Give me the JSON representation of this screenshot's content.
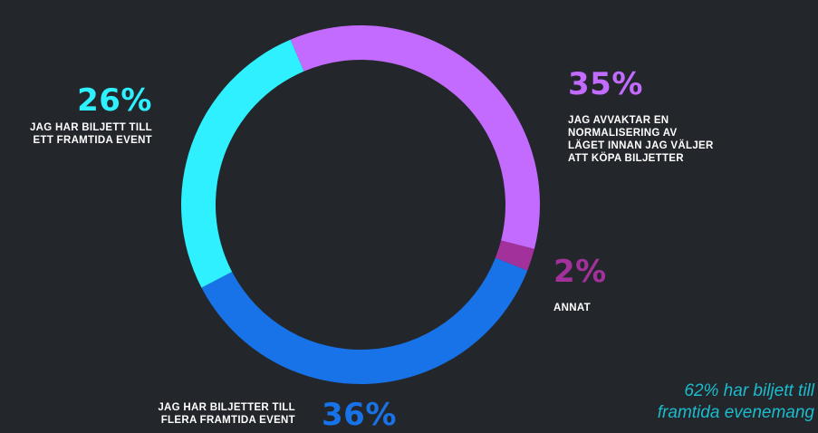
{
  "chart_data": {
    "type": "pie",
    "variant": "donut",
    "slices": [
      {
        "value": 35,
        "label": "35%",
        "description": "JAG AVVAKTAR EN\nNORMALISERING AV\nLÄGET INNAN JAG VÄLJER\nATT KÖPA BILJETTER",
        "color": "#c36bff"
      },
      {
        "value": 2,
        "label": "2%",
        "description": "ANNAT",
        "color": "#a3319c"
      },
      {
        "value": 36,
        "label": "36%",
        "description": "JAG HAR BILJETTER TILL\nFLERA FRAMTIDA EVENT",
        "color": "#1873e8"
      },
      {
        "value": 26,
        "label": "26%",
        "description": "JAG HAR BILJETT TILL\nETT FRAMTIDA EVENT",
        "color": "#2ef0ff"
      }
    ]
  },
  "note": "62% har biljett till\nframtida evenemang",
  "colors": {
    "background": "#23262b",
    "note": "#1bbccc"
  }
}
